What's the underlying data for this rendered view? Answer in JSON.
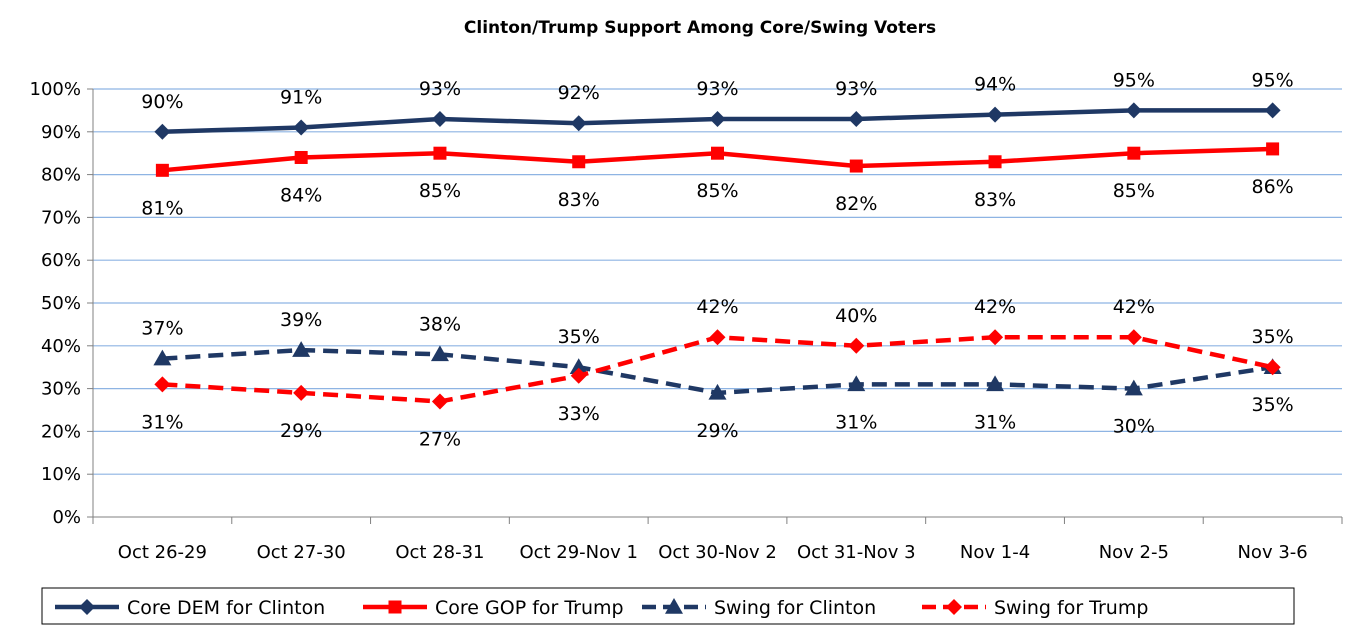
{
  "chart_data": {
    "type": "line",
    "title": "Clinton/Trump Support Among Core/Swing Voters",
    "xlabel": "",
    "ylabel": "",
    "ylim": [
      0,
      100
    ],
    "y_ticks": [
      "0%",
      "10%",
      "20%",
      "30%",
      "40%",
      "50%",
      "60%",
      "70%",
      "80%",
      "90%",
      "100%"
    ],
    "grid": "horizontal",
    "legend_position": "bottom",
    "categories": [
      "Oct 26-29",
      "Oct 27-30",
      "Oct 28-31",
      "Oct 29-Nov 1",
      "Oct 30-Nov 2",
      "Oct 31-Nov 3",
      "Nov 1-4",
      "Nov 2-5",
      "Nov 3-6"
    ],
    "series": [
      {
        "name": "Core DEM for Clinton",
        "values": [
          90,
          91,
          93,
          92,
          93,
          93,
          94,
          95,
          95
        ],
        "labels": [
          "90%",
          "91%",
          "93%",
          "92%",
          "93%",
          "93%",
          "94%",
          "95%",
          "95%"
        ],
        "color": "#1f3864",
        "dash": "solid",
        "marker": "diamond",
        "label_pos": "above"
      },
      {
        "name": "Core GOP for Trump",
        "values": [
          81,
          84,
          85,
          83,
          85,
          82,
          83,
          85,
          86
        ],
        "labels": [
          "81%",
          "84%",
          "85%",
          "83%",
          "85%",
          "82%",
          "83%",
          "85%",
          "86%"
        ],
        "color": "#ff0000",
        "dash": "solid",
        "marker": "square",
        "label_pos": "below"
      },
      {
        "name": "Swing for Clinton",
        "values": [
          37,
          39,
          38,
          35,
          29,
          31,
          31,
          30,
          35
        ],
        "labels": [
          "37%",
          "39%",
          "38%",
          "35%",
          "29%",
          "31%",
          "31%",
          "30%",
          "35%"
        ],
        "color": "#1f3864",
        "dash": "dashed",
        "marker": "triangle",
        "label_pos": [
          "above",
          "above",
          "above",
          "above",
          "below",
          "below",
          "below",
          "below",
          "below"
        ]
      },
      {
        "name": "Swing for Trump",
        "values": [
          31,
          29,
          27,
          33,
          42,
          40,
          42,
          42,
          35
        ],
        "labels": [
          "31%",
          "29%",
          "27%",
          "33%",
          "42%",
          "40%",
          "42%",
          "42%",
          "35%"
        ],
        "color": "#ff0000",
        "dash": "dashed",
        "marker": "diamond",
        "label_pos": [
          "below",
          "below",
          "below",
          "below",
          "above",
          "above",
          "above",
          "above",
          "above"
        ]
      }
    ]
  }
}
